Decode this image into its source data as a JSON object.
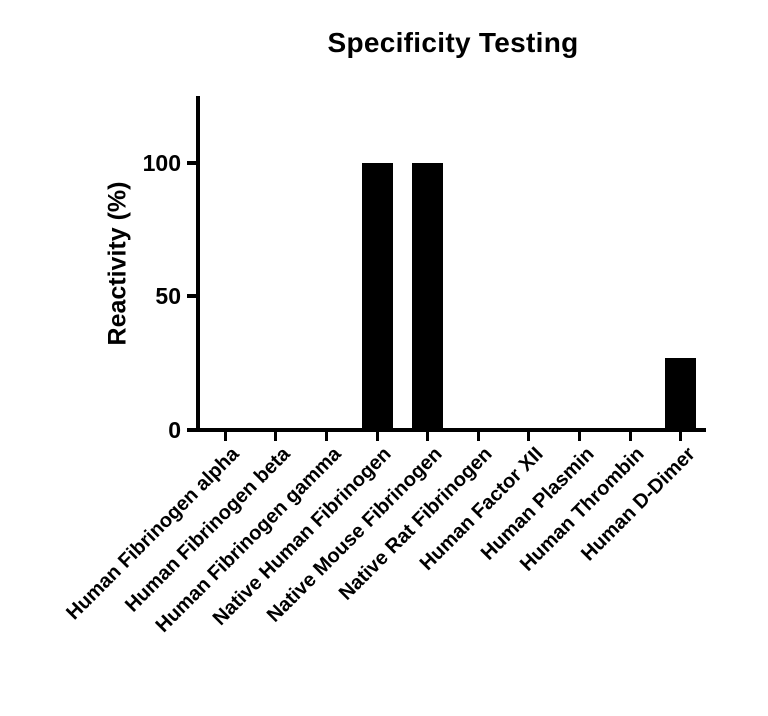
{
  "chart_data": {
    "type": "bar",
    "title": "Specificity Testing",
    "ylabel": "Reactivity (%)",
    "xlabel": "",
    "categories": [
      "Human Fibrinogen alpha",
      "Human Fibrinogen beta",
      "Human Fibrinogen gamma",
      "Native Human Fibrinogen",
      "Native Mouse Fibrinogen",
      "Native Rat Fibrinogen",
      "Human Factor XII",
      "Human Plasmin",
      "Human Thrombin",
      "Human D-Dimer"
    ],
    "values": [
      0,
      0,
      0,
      100,
      100,
      0,
      0,
      0,
      0,
      27
    ],
    "ylim": [
      0,
      125
    ],
    "yticks": [
      0,
      50,
      100
    ],
    "bar_color": "#000000",
    "axis_color": "#000000",
    "background_color": "#ffffff",
    "grid": false,
    "legend": "none",
    "x_tick_label_rotation_deg": 45
  }
}
